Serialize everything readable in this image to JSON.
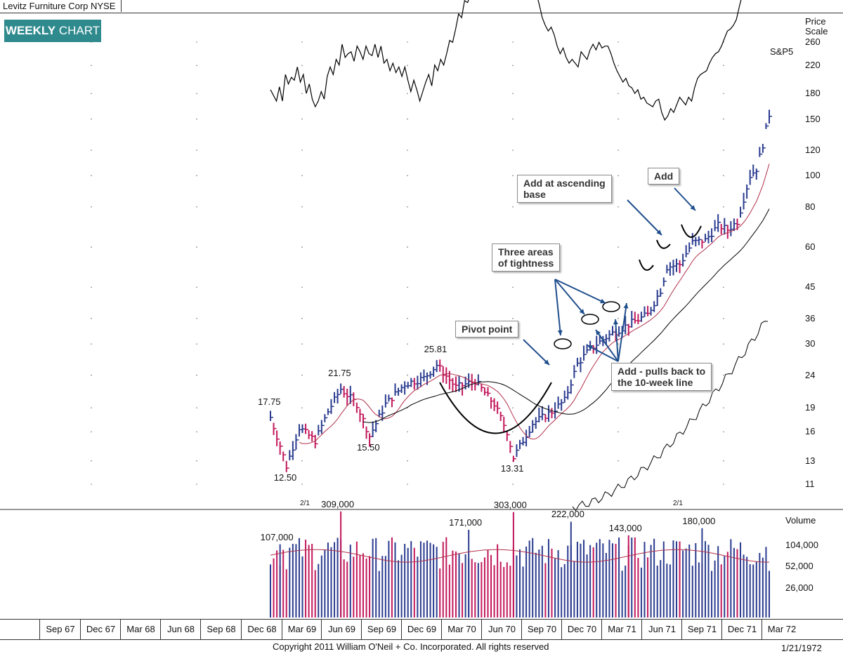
{
  "header": {
    "title": "Levitz Furniture Corp  NYSE",
    "badge_bold": "WEEKLY",
    "badge_rest": " CHART"
  },
  "footer": {
    "copyright": "Copyright 2011 William O'Neil + Co. Incorporated. All rights reserved",
    "report_date": "1/21/1972"
  },
  "colors": {
    "up_bar": "#2a3b8f",
    "down_bar": "#c2185b",
    "ma10": "#b0304a",
    "ma40": "#000000",
    "badge": "#2f8a8e",
    "arrow": "#1f4e8c"
  },
  "chart_data": {
    "type": "ohlc-weekly",
    "price_scale_title": "Price\nScale",
    "price_ticks": [
      260,
      220,
      180,
      150,
      120,
      100,
      80,
      60,
      45,
      36,
      30,
      24,
      19,
      16,
      13,
      11
    ],
    "yscale": "log",
    "x_labels": [
      "Sep 67",
      "Dec 67",
      "Mar 68",
      "Jun 68",
      "Sep 68",
      "Dec 68",
      "Mar 69",
      "Jun 69",
      "Sep 69",
      "Dec 69",
      "Mar 70",
      "Jun 70",
      "Sep 70",
      "Dec 70",
      "Mar 71",
      "Jun 71",
      "Sep 71",
      "Dec 71",
      "Mar 72"
    ],
    "price_annotations": [
      {
        "label": "17.75",
        "date": "Feb 69",
        "value": 17.75
      },
      {
        "label": "12.50",
        "date": "Mar 69",
        "value": 12.5
      },
      {
        "label": "21.75",
        "date": "Jun 69",
        "value": 21.75
      },
      {
        "label": "15.50",
        "date": "Sep 69",
        "value": 15.5
      },
      {
        "label": "25.81",
        "date": "Feb 70",
        "value": 25.81
      },
      {
        "label": "13.31",
        "date": "Jul 70",
        "value": 13.31
      }
    ],
    "split_markers": [
      "2/1",
      "2/1"
    ],
    "sp500_label": "S&P5",
    "sp500_line_points": [
      [
        0,
        72
      ],
      [
        8,
        60
      ],
      [
        12,
        75
      ],
      [
        16,
        60
      ],
      [
        20,
        88
      ],
      [
        24,
        78
      ],
      [
        28,
        85
      ],
      [
        32,
        82
      ],
      [
        36,
        96
      ],
      [
        40,
        80
      ],
      [
        44,
        88
      ],
      [
        48,
        68
      ],
      [
        52,
        78
      ],
      [
        56,
        62
      ],
      [
        60,
        54
      ],
      [
        64,
        60
      ],
      [
        68,
        70
      ],
      [
        72,
        62
      ],
      [
        76,
        86
      ],
      [
        80,
        96
      ],
      [
        84,
        88
      ],
      [
        88,
        104
      ],
      [
        92,
        98
      ],
      [
        96,
        120
      ],
      [
        100,
        106
      ],
      [
        104,
        110
      ],
      [
        108,
        112
      ],
      [
        112,
        102
      ],
      [
        116,
        118
      ],
      [
        120,
        112
      ],
      [
        124,
        104
      ],
      [
        128,
        118
      ],
      [
        132,
        110
      ],
      [
        136,
        108
      ],
      [
        140,
        120
      ],
      [
        144,
        106
      ],
      [
        148,
        118
      ],
      [
        152,
        100
      ],
      [
        156,
        104
      ],
      [
        160,
        92
      ],
      [
        164,
        100
      ],
      [
        168,
        90
      ],
      [
        172,
        96
      ],
      [
        176,
        86
      ],
      [
        180,
        96
      ],
      [
        184,
        82
      ],
      [
        188,
        70
      ],
      [
        192,
        82
      ],
      [
        196,
        72
      ],
      [
        200,
        60
      ],
      [
        204,
        70
      ],
      [
        208,
        80
      ],
      [
        212,
        88
      ],
      [
        216,
        76
      ],
      [
        220,
        98
      ],
      [
        224,
        92
      ],
      [
        228,
        104
      ],
      [
        232,
        98
      ],
      [
        236,
        110
      ],
      [
        240,
        124
      ],
      [
        244,
        122
      ],
      [
        248,
        136
      ],
      [
        252,
        152
      ],
      [
        256,
        148
      ],
      [
        260,
        166
      ],
      [
        264,
        164
      ],
      [
        268,
        172
      ],
      [
        272,
        178
      ],
      [
        276,
        180
      ],
      [
        280,
        176
      ],
      [
        284,
        188
      ],
      [
        288,
        198
      ],
      [
        292,
        210
      ],
      [
        296,
        206
      ],
      [
        300,
        220
      ],
      [
        304,
        214
      ],
      [
        308,
        232
      ],
      [
        312,
        214
      ],
      [
        316,
        212
      ],
      [
        320,
        200
      ],
      [
        324,
        196
      ],
      [
        328,
        204
      ],
      [
        332,
        214
      ],
      [
        336,
        198
      ],
      [
        340,
        210
      ],
      [
        344,
        196
      ],
      [
        348,
        200
      ],
      [
        352,
        186
      ],
      [
        356,
        174
      ],
      [
        360,
        162
      ],
      [
        364,
        148
      ],
      [
        368,
        140
      ],
      [
        372,
        134
      ],
      [
        376,
        138
      ],
      [
        380,
        130
      ],
      [
        384,
        118
      ],
      [
        388,
        110
      ],
      [
        392,
        116
      ],
      [
        396,
        106
      ],
      [
        400,
        100
      ],
      [
        404,
        104
      ],
      [
        408,
        100
      ],
      [
        412,
        96
      ],
      [
        416,
        112
      ],
      [
        420,
        108
      ],
      [
        424,
        104
      ],
      [
        428,
        114
      ],
      [
        432,
        120
      ],
      [
        436,
        114
      ],
      [
        440,
        122
      ],
      [
        444,
        116
      ],
      [
        448,
        118
      ],
      [
        452,
        118
      ],
      [
        456,
        110
      ],
      [
        460,
        100
      ],
      [
        464,
        92
      ],
      [
        468,
        86
      ],
      [
        472,
        80
      ],
      [
        476,
        84
      ],
      [
        480,
        76
      ],
      [
        484,
        74
      ],
      [
        488,
        68
      ],
      [
        492,
        72
      ],
      [
        496,
        62
      ],
      [
        500,
        64
      ],
      [
        504,
        58
      ],
      [
        508,
        56
      ],
      [
        512,
        54
      ],
      [
        516,
        60
      ],
      [
        520,
        62
      ],
      [
        524,
        48
      ],
      [
        528,
        40
      ],
      [
        532,
        44
      ],
      [
        536,
        52
      ],
      [
        540,
        48
      ],
      [
        544,
        56
      ],
      [
        548,
        64
      ],
      [
        552,
        60
      ],
      [
        556,
        56
      ],
      [
        560,
        64
      ],
      [
        564,
        60
      ],
      [
        568,
        74
      ],
      [
        572,
        84
      ],
      [
        576,
        88
      ],
      [
        580,
        90
      ],
      [
        584,
        92
      ],
      [
        588,
        100
      ],
      [
        592,
        106
      ],
      [
        596,
        110
      ],
      [
        600,
        112
      ],
      [
        604,
        118
      ],
      [
        608,
        126
      ],
      [
        612,
        134
      ],
      [
        616,
        136
      ],
      [
        620,
        140
      ],
      [
        624,
        146
      ],
      [
        628,
        160
      ],
      [
        632,
        172
      ],
      [
        636,
        184
      ],
      [
        640,
        192
      ],
      [
        644,
        204
      ],
      [
        648,
        216
      ],
      [
        652,
        222
      ],
      [
        656,
        228
      ],
      [
        660,
        236
      ],
      [
        664,
        242
      ],
      [
        668,
        248
      ]
    ],
    "relative_strength_label": "",
    "volume": {
      "title": "Volume",
      "ticks": [
        104000,
        52000,
        26000
      ],
      "tick_labels": [
        "104,000",
        "52,000",
        "26,000"
      ],
      "peak_labels": [
        {
          "label": "107,000",
          "value": 107000
        },
        {
          "label": "309,000",
          "value": 309000
        },
        {
          "label": "171,000",
          "value": 171000
        },
        {
          "label": "303,000",
          "value": 303000
        },
        {
          "label": "222,000",
          "value": 222000
        },
        {
          "label": "143,000",
          "value": 143000
        },
        {
          "label": "180,000",
          "value": 180000
        }
      ]
    },
    "callouts": [
      {
        "id": "pivot",
        "text": "Pivot point"
      },
      {
        "id": "tightness",
        "text": "Three areas\nof tightness"
      },
      {
        "id": "ascending",
        "text": "Add at ascending\nbase"
      },
      {
        "id": "add",
        "text": "Add"
      },
      {
        "id": "pullback",
        "text": "Add - pulls back to\nthe 10-week line"
      }
    ]
  }
}
